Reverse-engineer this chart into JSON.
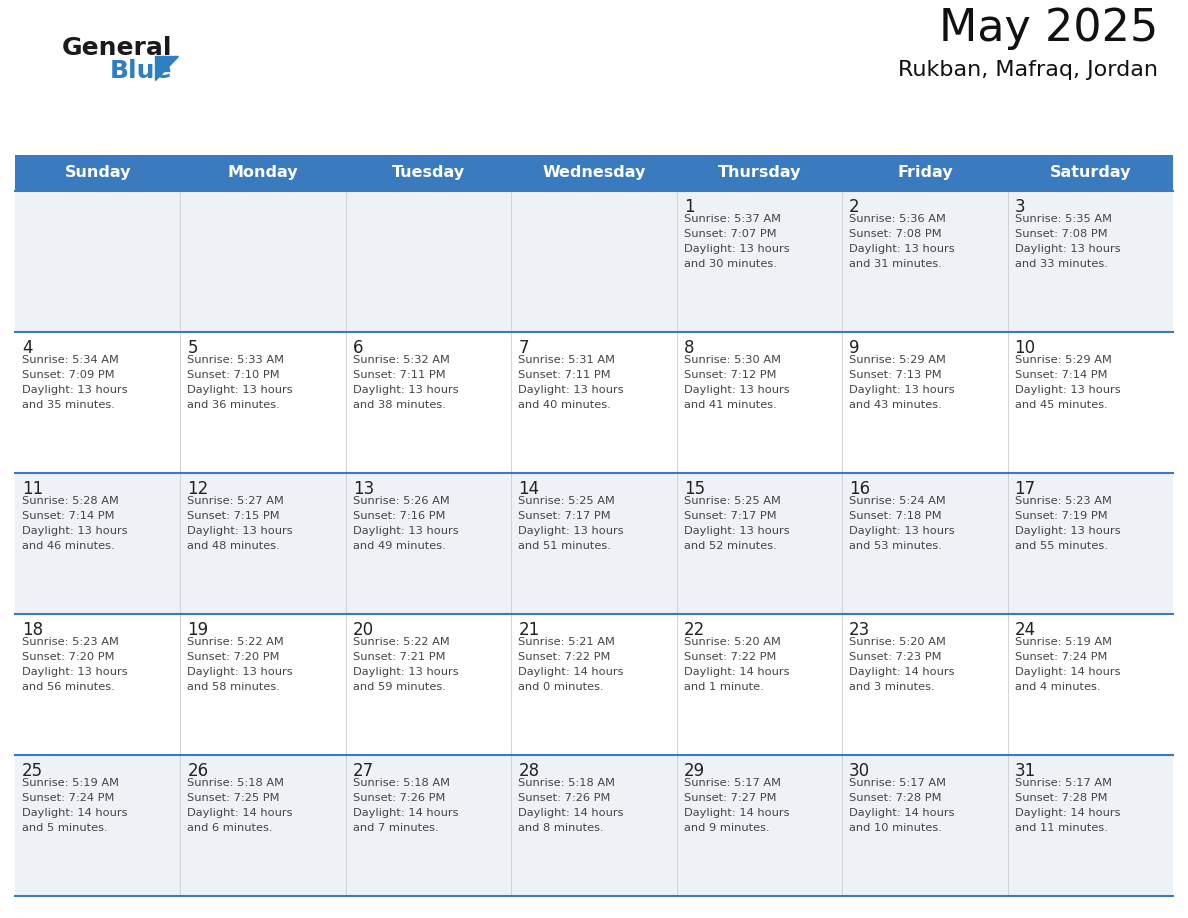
{
  "title": "May 2025",
  "subtitle": "Rukban, Mafraq, Jordan",
  "days_of_week": [
    "Sunday",
    "Monday",
    "Tuesday",
    "Wednesday",
    "Thursday",
    "Friday",
    "Saturday"
  ],
  "header_bg_color": "#3a7bbf",
  "header_text_color": "#ffffff",
  "cell_bg_color_odd": "#eef2f7",
  "cell_bg_color_even": "#ffffff",
  "row_line_color": "#3a7bbf",
  "text_color": "#444444",
  "day_number_color": "#222222",
  "logo_general_color": "#1a1a1a",
  "logo_blue_color": "#2e7fc1",
  "calendar_data": [
    [
      null,
      null,
      null,
      null,
      {
        "day": 1,
        "sunrise": "5:37 AM",
        "sunset": "7:07 PM",
        "daylight_line1": "Daylight: 13 hours",
        "daylight_line2": "and 30 minutes."
      },
      {
        "day": 2,
        "sunrise": "5:36 AM",
        "sunset": "7:08 PM",
        "daylight_line1": "Daylight: 13 hours",
        "daylight_line2": "and 31 minutes."
      },
      {
        "day": 3,
        "sunrise": "5:35 AM",
        "sunset": "7:08 PM",
        "daylight_line1": "Daylight: 13 hours",
        "daylight_line2": "and 33 minutes."
      }
    ],
    [
      {
        "day": 4,
        "sunrise": "5:34 AM",
        "sunset": "7:09 PM",
        "daylight_line1": "Daylight: 13 hours",
        "daylight_line2": "and 35 minutes."
      },
      {
        "day": 5,
        "sunrise": "5:33 AM",
        "sunset": "7:10 PM",
        "daylight_line1": "Daylight: 13 hours",
        "daylight_line2": "and 36 minutes."
      },
      {
        "day": 6,
        "sunrise": "5:32 AM",
        "sunset": "7:11 PM",
        "daylight_line1": "Daylight: 13 hours",
        "daylight_line2": "and 38 minutes."
      },
      {
        "day": 7,
        "sunrise": "5:31 AM",
        "sunset": "7:11 PM",
        "daylight_line1": "Daylight: 13 hours",
        "daylight_line2": "and 40 minutes."
      },
      {
        "day": 8,
        "sunrise": "5:30 AM",
        "sunset": "7:12 PM",
        "daylight_line1": "Daylight: 13 hours",
        "daylight_line2": "and 41 minutes."
      },
      {
        "day": 9,
        "sunrise": "5:29 AM",
        "sunset": "7:13 PM",
        "daylight_line1": "Daylight: 13 hours",
        "daylight_line2": "and 43 minutes."
      },
      {
        "day": 10,
        "sunrise": "5:29 AM",
        "sunset": "7:14 PM",
        "daylight_line1": "Daylight: 13 hours",
        "daylight_line2": "and 45 minutes."
      }
    ],
    [
      {
        "day": 11,
        "sunrise": "5:28 AM",
        "sunset": "7:14 PM",
        "daylight_line1": "Daylight: 13 hours",
        "daylight_line2": "and 46 minutes."
      },
      {
        "day": 12,
        "sunrise": "5:27 AM",
        "sunset": "7:15 PM",
        "daylight_line1": "Daylight: 13 hours",
        "daylight_line2": "and 48 minutes."
      },
      {
        "day": 13,
        "sunrise": "5:26 AM",
        "sunset": "7:16 PM",
        "daylight_line1": "Daylight: 13 hours",
        "daylight_line2": "and 49 minutes."
      },
      {
        "day": 14,
        "sunrise": "5:25 AM",
        "sunset": "7:17 PM",
        "daylight_line1": "Daylight: 13 hours",
        "daylight_line2": "and 51 minutes."
      },
      {
        "day": 15,
        "sunrise": "5:25 AM",
        "sunset": "7:17 PM",
        "daylight_line1": "Daylight: 13 hours",
        "daylight_line2": "and 52 minutes."
      },
      {
        "day": 16,
        "sunrise": "5:24 AM",
        "sunset": "7:18 PM",
        "daylight_line1": "Daylight: 13 hours",
        "daylight_line2": "and 53 minutes."
      },
      {
        "day": 17,
        "sunrise": "5:23 AM",
        "sunset": "7:19 PM",
        "daylight_line1": "Daylight: 13 hours",
        "daylight_line2": "and 55 minutes."
      }
    ],
    [
      {
        "day": 18,
        "sunrise": "5:23 AM",
        "sunset": "7:20 PM",
        "daylight_line1": "Daylight: 13 hours",
        "daylight_line2": "and 56 minutes."
      },
      {
        "day": 19,
        "sunrise": "5:22 AM",
        "sunset": "7:20 PM",
        "daylight_line1": "Daylight: 13 hours",
        "daylight_line2": "and 58 minutes."
      },
      {
        "day": 20,
        "sunrise": "5:22 AM",
        "sunset": "7:21 PM",
        "daylight_line1": "Daylight: 13 hours",
        "daylight_line2": "and 59 minutes."
      },
      {
        "day": 21,
        "sunrise": "5:21 AM",
        "sunset": "7:22 PM",
        "daylight_line1": "Daylight: 14 hours",
        "daylight_line2": "and 0 minutes."
      },
      {
        "day": 22,
        "sunrise": "5:20 AM",
        "sunset": "7:22 PM",
        "daylight_line1": "Daylight: 14 hours",
        "daylight_line2": "and 1 minute."
      },
      {
        "day": 23,
        "sunrise": "5:20 AM",
        "sunset": "7:23 PM",
        "daylight_line1": "Daylight: 14 hours",
        "daylight_line2": "and 3 minutes."
      },
      {
        "day": 24,
        "sunrise": "5:19 AM",
        "sunset": "7:24 PM",
        "daylight_line1": "Daylight: 14 hours",
        "daylight_line2": "and 4 minutes."
      }
    ],
    [
      {
        "day": 25,
        "sunrise": "5:19 AM",
        "sunset": "7:24 PM",
        "daylight_line1": "Daylight: 14 hours",
        "daylight_line2": "and 5 minutes."
      },
      {
        "day": 26,
        "sunrise": "5:18 AM",
        "sunset": "7:25 PM",
        "daylight_line1": "Daylight: 14 hours",
        "daylight_line2": "and 6 minutes."
      },
      {
        "day": 27,
        "sunrise": "5:18 AM",
        "sunset": "7:26 PM",
        "daylight_line1": "Daylight: 14 hours",
        "daylight_line2": "and 7 minutes."
      },
      {
        "day": 28,
        "sunrise": "5:18 AM",
        "sunset": "7:26 PM",
        "daylight_line1": "Daylight: 14 hours",
        "daylight_line2": "and 8 minutes."
      },
      {
        "day": 29,
        "sunrise": "5:17 AM",
        "sunset": "7:27 PM",
        "daylight_line1": "Daylight: 14 hours",
        "daylight_line2": "and 9 minutes."
      },
      {
        "day": 30,
        "sunrise": "5:17 AM",
        "sunset": "7:28 PM",
        "daylight_line1": "Daylight: 14 hours",
        "daylight_line2": "and 10 minutes."
      },
      {
        "day": 31,
        "sunrise": "5:17 AM",
        "sunset": "7:28 PM",
        "daylight_line1": "Daylight: 14 hours",
        "daylight_line2": "and 11 minutes."
      }
    ]
  ]
}
